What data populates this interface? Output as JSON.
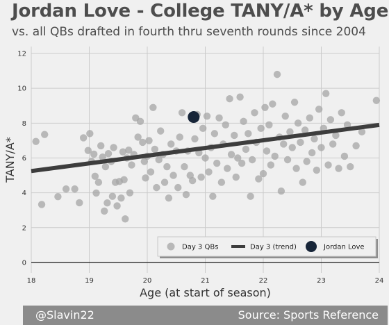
{
  "header": {
    "title": "Jordan Love - College TANY/A* by Age",
    "subtitle": "vs. all QBs drafted in fourth thru seventh rounds since 2004"
  },
  "footer": {
    "left": "@Slavin22",
    "right": "Source: Sports Reference"
  },
  "colors": {
    "background": "#f0f0f0",
    "scatter": "#a6a6a6",
    "trend": "#3d3d3d",
    "highlight": "#172538",
    "footer_bar": "#8b8b8b"
  },
  "chart_data": {
    "type": "scatter",
    "xlabel": "Age (at start of season)",
    "ylabel": "TANY/A*",
    "xlim": [
      18,
      24
    ],
    "ylim": [
      -0.6,
      12.4
    ],
    "xticks": [
      "18",
      "19",
      "20",
      "21",
      "22",
      "23",
      "24"
    ],
    "yticks": [
      "0",
      "2",
      "4",
      "6",
      "8",
      "10",
      "12"
    ],
    "grid": true,
    "legend_position": "bottom-right",
    "legend": [
      "Day 3 QBs",
      "Day 3 (trend)",
      "Jordan Love"
    ],
    "series": [
      {
        "name": "Day 3 QBs",
        "points": [
          [
            18.08,
            6.95
          ],
          [
            18.18,
            3.33
          ],
          [
            18.23,
            7.35
          ],
          [
            18.46,
            3.78
          ],
          [
            18.6,
            4.22
          ],
          [
            18.75,
            4.22
          ],
          [
            18.83,
            3.43
          ],
          [
            18.9,
            7.16
          ],
          [
            18.98,
            6.43
          ],
          [
            19.01,
            7.4
          ],
          [
            19.04,
            5.8
          ],
          [
            19.08,
            6.22
          ],
          [
            19.1,
            4.95
          ],
          [
            19.12,
            3.99
          ],
          [
            19.16,
            4.6
          ],
          [
            19.2,
            6.7
          ],
          [
            19.23,
            6.05
          ],
          [
            19.26,
            2.95
          ],
          [
            19.28,
            5.5
          ],
          [
            19.31,
            3.42
          ],
          [
            19.33,
            6.25
          ],
          [
            19.38,
            5.8
          ],
          [
            19.4,
            3.8
          ],
          [
            19.42,
            6.6
          ],
          [
            19.45,
            4.6
          ],
          [
            19.48,
            3.25
          ],
          [
            19.52,
            4.65
          ],
          [
            19.55,
            3.7
          ],
          [
            19.58,
            6.35
          ],
          [
            19.6,
            4.75
          ],
          [
            19.62,
            2.5
          ],
          [
            19.65,
            6.0
          ],
          [
            19.68,
            6.45
          ],
          [
            19.7,
            4.0
          ],
          [
            19.73,
            5.6
          ],
          [
            19.77,
            6.2
          ],
          [
            19.8,
            8.3
          ],
          [
            19.84,
            7.2
          ],
          [
            19.88,
            8.1
          ],
          [
            19.92,
            6.9
          ],
          [
            19.95,
            5.8
          ],
          [
            19.97,
            4.85
          ],
          [
            20.0,
            6.1
          ],
          [
            20.03,
            7.0
          ],
          [
            20.06,
            5.2
          ],
          [
            20.1,
            8.9
          ],
          [
            20.13,
            6.5
          ],
          [
            20.16,
            4.3
          ],
          [
            20.2,
            5.9
          ],
          [
            20.23,
            7.55
          ],
          [
            20.27,
            6.2
          ],
          [
            20.3,
            4.6
          ],
          [
            20.34,
            5.5
          ],
          [
            20.37,
            3.7
          ],
          [
            20.41,
            6.8
          ],
          [
            20.45,
            5.0
          ],
          [
            20.5,
            6.4
          ],
          [
            20.53,
            4.3
          ],
          [
            20.56,
            7.2
          ],
          [
            20.6,
            8.6
          ],
          [
            20.64,
            5.5
          ],
          [
            20.67,
            3.9
          ],
          [
            20.7,
            6.4
          ],
          [
            20.74,
            5.0
          ],
          [
            20.78,
            4.7
          ],
          [
            20.82,
            7.1
          ],
          [
            20.86,
            8.5
          ],
          [
            20.89,
            6.3
          ],
          [
            20.93,
            4.9
          ],
          [
            20.96,
            7.7
          ],
          [
            21.0,
            6.0
          ],
          [
            21.03,
            8.4
          ],
          [
            21.06,
            5.2
          ],
          [
            21.1,
            6.6
          ],
          [
            21.13,
            3.8
          ],
          [
            21.16,
            7.4
          ],
          [
            21.2,
            5.7
          ],
          [
            21.24,
            8.3
          ],
          [
            21.28,
            4.6
          ],
          [
            21.31,
            6.8
          ],
          [
            21.35,
            7.9
          ],
          [
            21.38,
            5.4
          ],
          [
            21.42,
            9.4
          ],
          [
            21.45,
            6.2
          ],
          [
            21.5,
            7.3
          ],
          [
            21.53,
            4.9
          ],
          [
            21.56,
            6.0
          ],
          [
            21.6,
            9.5
          ],
          [
            21.63,
            5.7
          ],
          [
            21.66,
            8.1
          ],
          [
            21.7,
            6.5
          ],
          [
            21.74,
            7.4
          ],
          [
            21.78,
            3.8
          ],
          [
            21.81,
            5.9
          ],
          [
            21.85,
            8.6
          ],
          [
            21.88,
            6.9
          ],
          [
            21.92,
            4.8
          ],
          [
            21.96,
            7.7
          ],
          [
            22.0,
            5.1
          ],
          [
            22.03,
            8.9
          ],
          [
            22.06,
            6.4
          ],
          [
            22.1,
            7.9
          ],
          [
            22.13,
            5.6
          ],
          [
            22.16,
            9.1
          ],
          [
            22.2,
            6.1
          ],
          [
            22.24,
            10.8
          ],
          [
            22.28,
            7.2
          ],
          [
            22.31,
            4.1
          ],
          [
            22.35,
            6.8
          ],
          [
            22.38,
            8.4
          ],
          [
            22.42,
            5.9
          ],
          [
            22.46,
            7.5
          ],
          [
            22.5,
            6.6
          ],
          [
            22.54,
            9.2
          ],
          [
            22.57,
            5.4
          ],
          [
            22.6,
            8.0
          ],
          [
            22.64,
            6.9
          ],
          [
            22.68,
            4.6
          ],
          [
            22.72,
            7.6
          ],
          [
            22.75,
            5.8
          ],
          [
            22.8,
            8.3
          ],
          [
            22.84,
            6.3
          ],
          [
            22.88,
            7.1
          ],
          [
            22.92,
            5.3
          ],
          [
            22.96,
            8.8
          ],
          [
            23.0,
            6.6
          ],
          [
            23.04,
            7.7
          ],
          [
            23.08,
            9.7
          ],
          [
            23.12,
            5.6
          ],
          [
            23.16,
            8.2
          ],
          [
            23.2,
            6.8
          ],
          [
            23.25,
            7.3
          ],
          [
            23.3,
            5.4
          ],
          [
            23.35,
            8.6
          ],
          [
            23.4,
            6.1
          ],
          [
            23.45,
            7.9
          ],
          [
            23.5,
            5.5
          ],
          [
            23.6,
            6.7
          ],
          [
            23.7,
            7.5
          ],
          [
            23.95,
            9.3
          ]
        ]
      },
      {
        "name": "Day 3 (trend)",
        "line": [
          [
            18,
            5.25
          ],
          [
            24,
            7.9
          ]
        ]
      },
      {
        "name": "Jordan Love",
        "points": [
          [
            20.8,
            8.35
          ]
        ]
      }
    ]
  }
}
